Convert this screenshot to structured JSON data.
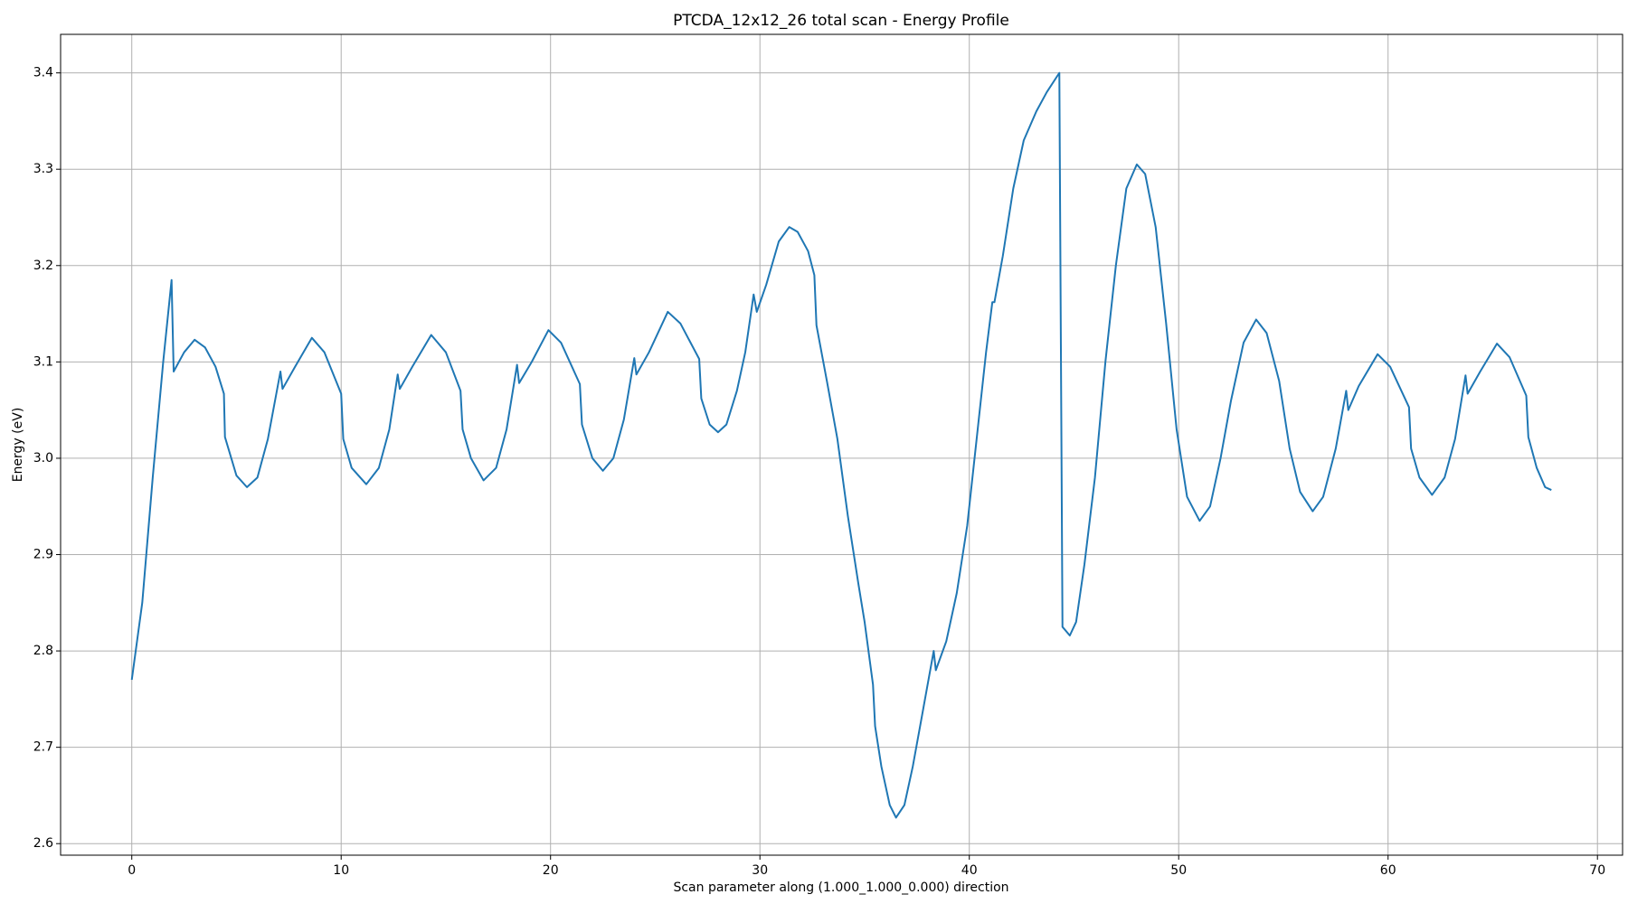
{
  "chart_data": {
    "type": "line",
    "title": "PTCDA_12x12_26 total scan - Energy Profile",
    "x_label": "Scan parameter along (1.000_1.000_0.000) direction",
    "y_label": "Energy (eV)",
    "xlim": [
      -3.4,
      71.2
    ],
    "ylim": [
      2.588,
      3.44
    ],
    "xticks": [
      0,
      10,
      20,
      30,
      40,
      50,
      60,
      70
    ],
    "yticks": [
      2.6,
      2.7,
      2.8,
      2.9,
      {
        "value": 3,
        "label": "3.0"
      },
      3.1,
      3.2,
      3.3,
      3.4
    ],
    "grid": true,
    "series": [
      {
        "color": "#1f77b4",
        "x": [
          0,
          0.5,
          1,
          1.5,
          1.9,
          2.0,
          2.5,
          3.0,
          3.5,
          4.0,
          4.4,
          4.45,
          5.0,
          5.5,
          6.0,
          6.5,
          7.1,
          7.2,
          7.8,
          8.6,
          9.2,
          10.0,
          10.1,
          10.5,
          11.2,
          11.8,
          12.3,
          12.7,
          12.8,
          13.4,
          14.3,
          15.0,
          15.7,
          15.8,
          16.2,
          16.8,
          17.4,
          17.9,
          18.4,
          18.5,
          19.1,
          19.9,
          20.5,
          21.4,
          21.5,
          22.0,
          22.5,
          23.0,
          23.5,
          24.0,
          24.1,
          24.7,
          25.6,
          26.2,
          27.1,
          27.2,
          27.6,
          28.0,
          28.4,
          28.9,
          29.3,
          29.7,
          29.85,
          30.3,
          30.9,
          31.4,
          31.8,
          32.3,
          32.6,
          32.7,
          33.2,
          33.7,
          34.2,
          34.7,
          35.0,
          35.4,
          35.5,
          35.8,
          36.2,
          36.5,
          36.9,
          37.3,
          37.8,
          38.3,
          38.4,
          38.9,
          39.4,
          39.9,
          40.4,
          40.8,
          41.1,
          41.2,
          41.6,
          42.1,
          42.6,
          43.2,
          43.7,
          44.3,
          44.45,
          44.8,
          45.1,
          45.5,
          46.0,
          46.5,
          47.0,
          47.5,
          48.0,
          48.4,
          48.9,
          49.4,
          49.9,
          50.4,
          51.0,
          51.5,
          52.0,
          52.5,
          53.1,
          53.7,
          54.2,
          54.8,
          55.3,
          55.8,
          56.4,
          56.9,
          57.5,
          58.0,
          58.1,
          58.6,
          59.5,
          60.1,
          61.0,
          61.1,
          61.5,
          62.1,
          62.7,
          63.2,
          63.7,
          63.8,
          64.4,
          65.2,
          65.8,
          66.6,
          66.7,
          67.1,
          67.5,
          67.8
        ],
        "values": [
          2.77,
          2.85,
          2.98,
          3.1,
          3.185,
          3.09,
          3.11,
          3.123,
          3.115,
          3.095,
          3.067,
          3.022,
          2.982,
          2.97,
          2.98,
          3.02,
          3.09,
          3.072,
          3.095,
          3.125,
          3.11,
          3.067,
          3.02,
          2.99,
          2.973,
          2.99,
          3.03,
          3.087,
          3.072,
          3.095,
          3.128,
          3.11,
          3.07,
          3.03,
          3.0,
          2.977,
          2.99,
          3.03,
          3.097,
          3.078,
          3.1,
          3.133,
          3.12,
          3.077,
          3.035,
          3.0,
          2.987,
          3.0,
          3.04,
          3.104,
          3.087,
          3.11,
          3.152,
          3.14,
          3.103,
          3.062,
          3.035,
          3.027,
          3.035,
          3.07,
          3.11,
          3.17,
          3.152,
          3.18,
          3.225,
          3.24,
          3.235,
          3.215,
          3.19,
          3.138,
          3.08,
          3.02,
          2.94,
          2.87,
          2.83,
          2.765,
          2.722,
          2.68,
          2.64,
          2.627,
          2.64,
          2.68,
          2.74,
          2.8,
          2.78,
          2.81,
          2.86,
          2.93,
          3.03,
          3.11,
          3.162,
          3.162,
          3.21,
          3.28,
          3.33,
          3.36,
          3.38,
          3.4,
          2.825,
          2.816,
          2.83,
          2.89,
          2.98,
          3.1,
          3.2,
          3.28,
          3.305,
          3.295,
          3.24,
          3.14,
          3.03,
          2.96,
          2.935,
          2.95,
          3.0,
          3.06,
          3.12,
          3.144,
          3.13,
          3.08,
          3.01,
          2.965,
          2.945,
          2.96,
          3.01,
          3.07,
          3.05,
          3.075,
          3.108,
          3.095,
          3.053,
          3.01,
          2.98,
          2.962,
          2.98,
          3.02,
          3.086,
          3.067,
          3.09,
          3.119,
          3.105,
          3.065,
          3.022,
          2.99,
          2.97,
          2.967
        ]
      }
    ]
  }
}
